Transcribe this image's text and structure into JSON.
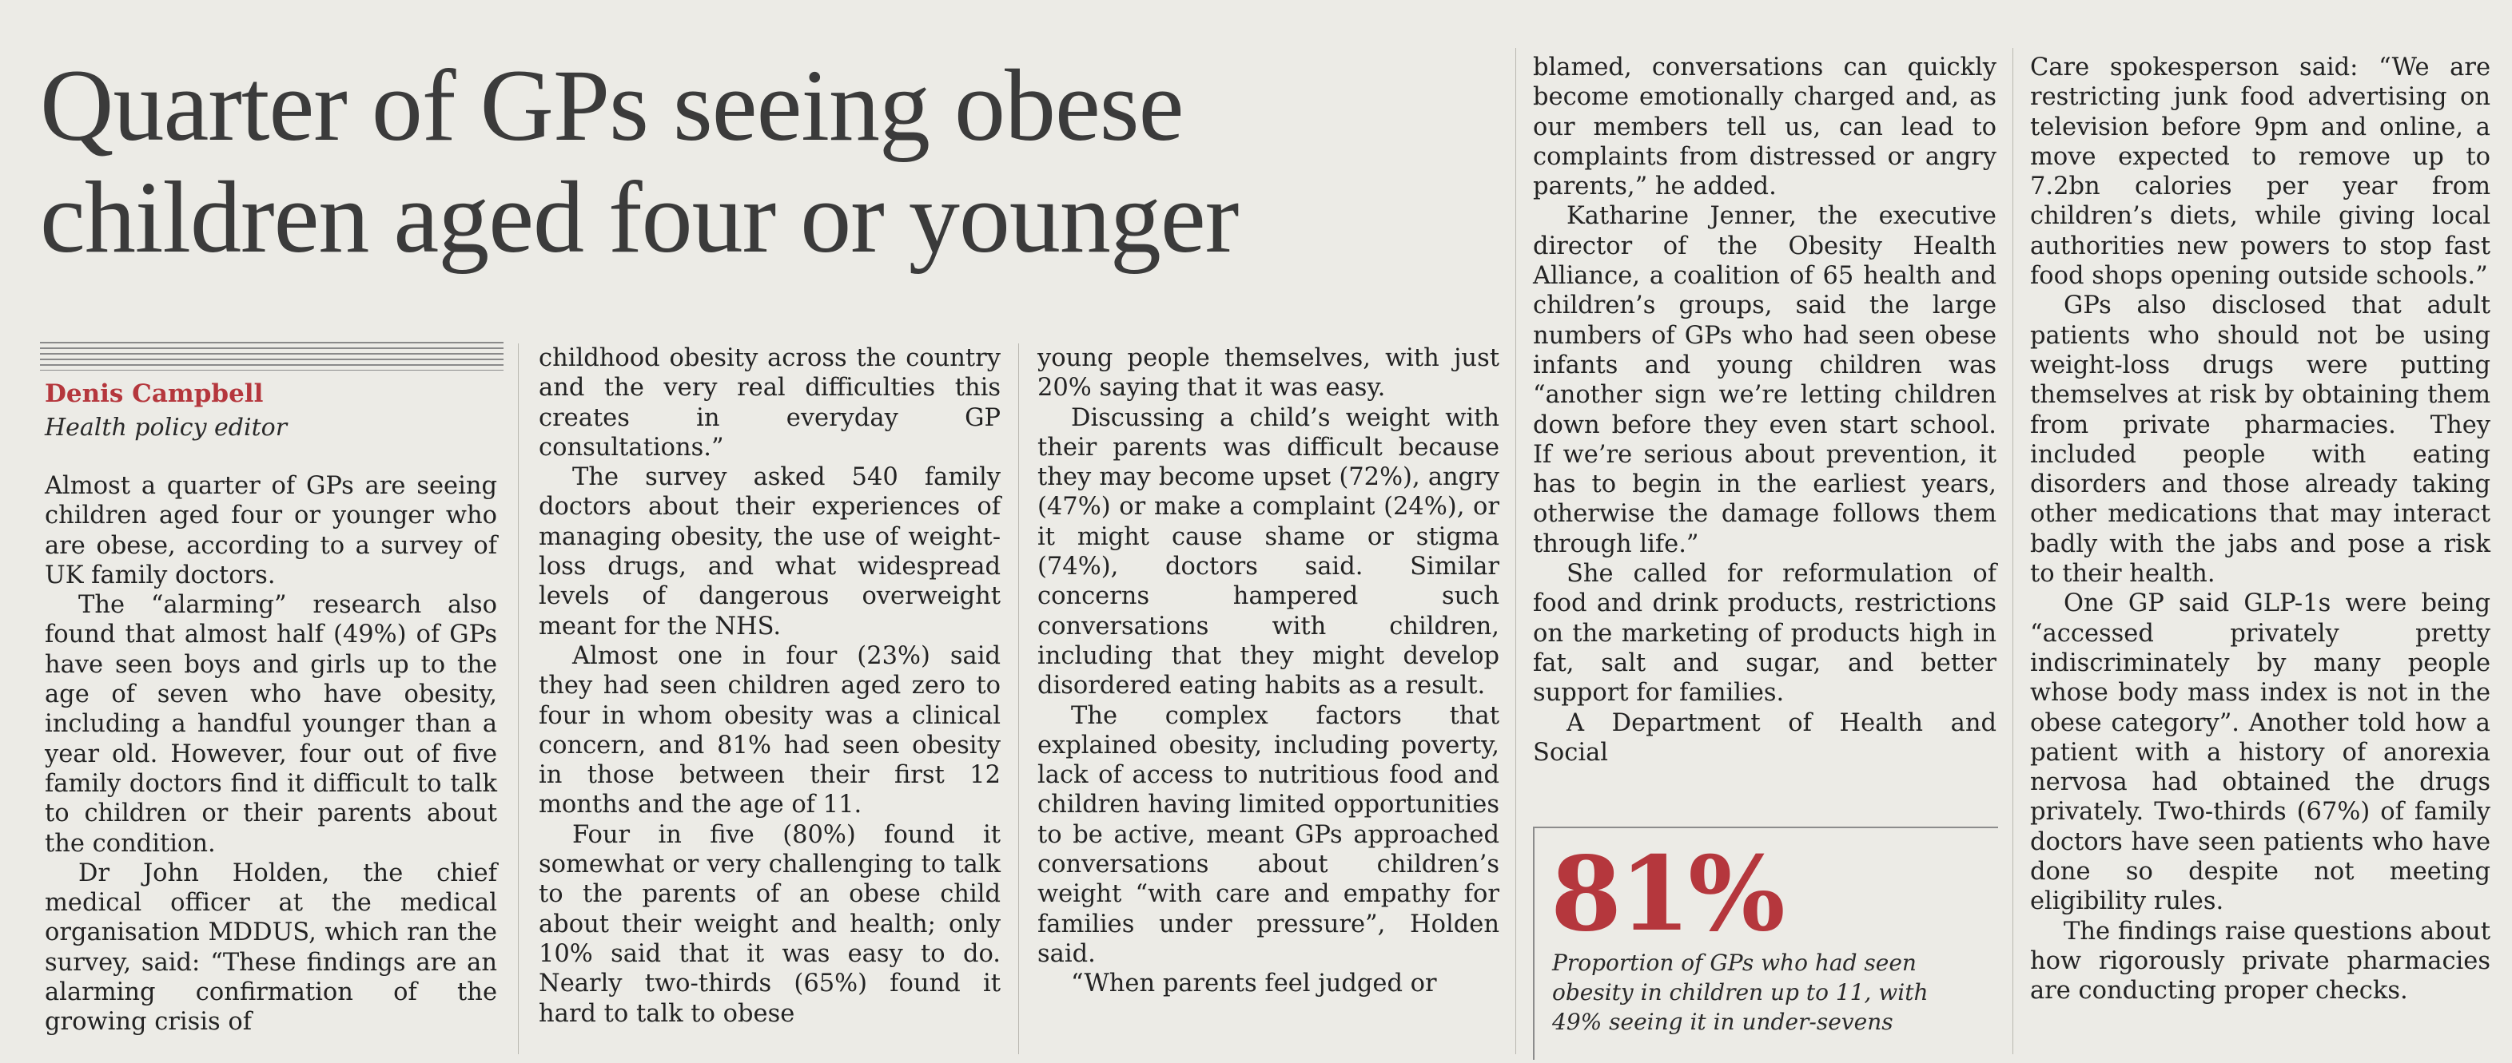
{
  "article": {
    "headline_line1": "Quarter of GPs seeing obese",
    "headline_line2": "children aged four or younger",
    "author": "Denis Campbell",
    "role": "Health policy editor"
  },
  "col1": [
    "Almost a quarter of GPs are seeing children aged four or younger who are obese, according to a survey of UK family doctors.",
    "The “alarming” research also found that almost half (49%) of GPs have seen boys and girls up to the age of seven who have obesity, including a handful younger than a year old. However, four out of five family doctors find it difficult to talk to children or their parents about the condition.",
    "Dr John Holden, the chief medical officer at the medical organisation MDDUS, which ran the survey, said: “These findings are an alarming confirmation of the growing crisis of"
  ],
  "col2": [
    "childhood obesity across the country and the very real difficulties this creates in everyday GP consultations.”",
    "The survey asked 540 family doctors about their experiences of managing obesity, the use of weight-loss drugs, and what widespread levels of dangerous overweight meant for the NHS.",
    "Almost one in four (23%) said they had seen children aged zero to four in whom obesity was a clinical concern, and 81% had seen obesity in those between their first 12 months and the age of 11.",
    "Four in five (80%) found it somewhat or very challenging to talk to the parents of an obese child about their weight and health; only 10% said that it was easy to do. Nearly two-thirds (65%) found it hard to talk to obese"
  ],
  "col3": [
    "young people themselves, with just 20% saying that it was easy.",
    "Discussing a child’s weight with their parents was difficult because they may become upset (72%), angry (47%) or make a complaint (24%), or it might cause shame or stigma (74%), doctors said. Similar concerns hampered such conversations with children, including that they might develop disordered eating habits as a result.",
    "The complex factors that explained obesity, including poverty, lack of access to nutritious food and children having limited opportunities to be active, meant GPs approached conversations about children’s weight “with care and empathy for families under pressure”, Holden said.",
    "“When parents feel judged or"
  ],
  "col4": [
    "blamed, conversations can quickly become emotionally charged and, as our members tell us, can lead to complaints from distressed or angry parents,” he added.",
    "Katharine Jenner, the executive director of the Obesity Health Alliance, a coalition of 65 health and children’s groups, said the large numbers of GPs who had seen obese infants and young children was “another sign we’re letting children down before they even start school. If we’re serious about prevention, it has to begin in the earliest years, otherwise the damage follows them through life.”",
    "She called for reformulation of food and drink products, restrictions on the marketing of products high in fat, salt and sugar, and better support for families.",
    "A Department of Health and Social"
  ],
  "col5": [
    "Care spokesperson said: “We are restricting junk food advertising on television before 9pm and online, a move expected to remove up to 7.2bn calories per year from children’s diets, while giving local authorities new powers to stop fast food shops opening outside schools.”",
    "GPs also disclosed that adult patients who should not be using weight-loss drugs were putting themselves at risk by obtaining them from private pharmacies. They included people with eating disorders and those already taking other medications that may interact badly with the jabs and pose a risk to their health.",
    "One GP said GLP-1s were being “accessed privately pretty indiscriminately by many people whose body mass index is not in the obese category”. Another told how a patient with a history of anorexia nervosa had obtained the drugs privately. Two-thirds (67%) of family doctors have seen patients who have done so despite not meeting eligibility rules.",
    "The findings raise questions about how rigorously private pharmacies are conducting proper checks."
  ],
  "pullquote": {
    "figure": "81%",
    "caption": "Proportion of GPs who had seen obesity in children up to 11, with 49% seeing it in under-sevens"
  },
  "colors": {
    "accent": "#b5373d",
    "paper": "#ecebe6",
    "text": "#232323"
  }
}
